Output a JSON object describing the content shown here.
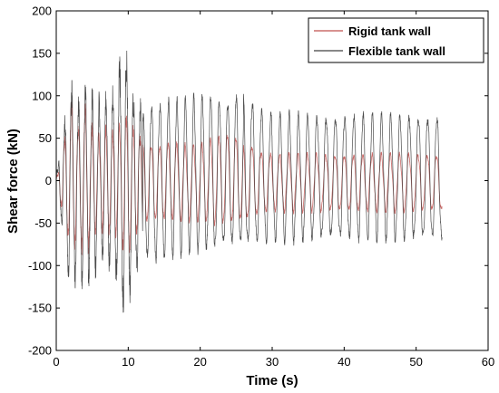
{
  "chart_data": {
    "type": "line",
    "title": "",
    "xlabel": "Time (s)",
    "ylabel": "Shear force (kN)",
    "xlim": [
      0,
      60
    ],
    "ylim": [
      -200,
      200
    ],
    "xticks": [
      0,
      10,
      20,
      30,
      40,
      50,
      60
    ],
    "yticks": [
      -200,
      -150,
      -100,
      -50,
      0,
      50,
      100,
      150,
      200
    ],
    "grid": false,
    "legend_position": "top-right",
    "duration": 53.6,
    "series": [
      {
        "name": "Rigid tank wall",
        "color": "#c0504d",
        "peaks": [
          [
            0,
            0
          ],
          [
            1,
            40
          ],
          [
            2,
            95
          ],
          [
            3,
            60
          ],
          [
            4,
            85
          ],
          [
            5,
            60
          ],
          [
            6,
            50
          ],
          [
            7,
            60
          ],
          [
            8,
            55
          ],
          [
            9,
            65
          ],
          [
            10,
            75
          ],
          [
            11,
            55
          ],
          [
            12,
            45
          ],
          [
            14,
            40
          ],
          [
            16,
            45
          ],
          [
            18,
            40
          ],
          [
            20,
            40
          ],
          [
            22,
            50
          ],
          [
            24,
            55
          ],
          [
            26,
            50
          ],
          [
            28,
            35
          ],
          [
            30,
            30
          ],
          [
            35,
            30
          ],
          [
            40,
            30
          ],
          [
            45,
            30
          ],
          [
            50,
            30
          ],
          [
            53.6,
            30
          ]
        ],
        "troughs": [
          [
            0,
            0
          ],
          [
            1,
            -45
          ],
          [
            2,
            -80
          ],
          [
            3,
            -70
          ],
          [
            4,
            -85
          ],
          [
            5,
            -65
          ],
          [
            6,
            -55
          ],
          [
            7,
            -60
          ],
          [
            8,
            -60
          ],
          [
            9,
            -75
          ],
          [
            10,
            -85
          ],
          [
            11,
            -65
          ],
          [
            12,
            -50
          ],
          [
            14,
            -45
          ],
          [
            16,
            -45
          ],
          [
            18,
            -45
          ],
          [
            20,
            -45
          ],
          [
            22,
            -50
          ],
          [
            24,
            -50
          ],
          [
            26,
            -45
          ],
          [
            28,
            -40
          ],
          [
            30,
            -35
          ],
          [
            35,
            -35
          ],
          [
            40,
            -35
          ],
          [
            45,
            -35
          ],
          [
            50,
            -35
          ],
          [
            53.6,
            -35
          ]
        ]
      },
      {
        "name": "Flexible tank wall",
        "color": "#404040",
        "peaks": [
          [
            0,
            5
          ],
          [
            1,
            60
          ],
          [
            2,
            110
          ],
          [
            3,
            85
          ],
          [
            4,
            100
          ],
          [
            5,
            95
          ],
          [
            6,
            85
          ],
          [
            7,
            90
          ],
          [
            8,
            100
          ],
          [
            9,
            140
          ],
          [
            9.6,
            163
          ],
          [
            10,
            115
          ],
          [
            11,
            90
          ],
          [
            12,
            80
          ],
          [
            13,
            85
          ],
          [
            14,
            90
          ],
          [
            15,
            85
          ],
          [
            16,
            95
          ],
          [
            17,
            90
          ],
          [
            18,
            95
          ],
          [
            19,
            95
          ],
          [
            20,
            100
          ],
          [
            21,
            95
          ],
          [
            22,
            105
          ],
          [
            23,
            90
          ],
          [
            24,
            95
          ],
          [
            25,
            100
          ],
          [
            26,
            105
          ],
          [
            27,
            95
          ],
          [
            28,
            85
          ],
          [
            29,
            80
          ],
          [
            30,
            75
          ],
          [
            32,
            75
          ],
          [
            35,
            75
          ],
          [
            40,
            75
          ],
          [
            45,
            75
          ],
          [
            50,
            75
          ],
          [
            53.6,
            75
          ]
        ],
        "troughs": [
          [
            0,
            -5
          ],
          [
            1,
            -70
          ],
          [
            2,
            -125
          ],
          [
            3,
            -110
          ],
          [
            4,
            -115
          ],
          [
            5,
            -110
          ],
          [
            6,
            -90
          ],
          [
            7,
            -95
          ],
          [
            8,
            -100
          ],
          [
            9,
            -150
          ],
          [
            10,
            -135
          ],
          [
            11,
            -110
          ],
          [
            12,
            -95
          ],
          [
            13,
            -90
          ],
          [
            14,
            -95
          ],
          [
            15,
            -90
          ],
          [
            16,
            -88
          ],
          [
            17,
            -85
          ],
          [
            18,
            -80
          ],
          [
            19,
            -80
          ],
          [
            20,
            -80
          ],
          [
            21,
            -80
          ],
          [
            22,
            -78
          ],
          [
            23,
            -75
          ],
          [
            24,
            -75
          ],
          [
            25,
            -75
          ],
          [
            26,
            -72
          ],
          [
            27,
            -72
          ],
          [
            28,
            -70
          ],
          [
            30,
            -68
          ],
          [
            35,
            -67
          ],
          [
            40,
            -67
          ],
          [
            45,
            -67
          ],
          [
            50,
            -67
          ],
          [
            53.6,
            -67
          ]
        ]
      }
    ]
  }
}
